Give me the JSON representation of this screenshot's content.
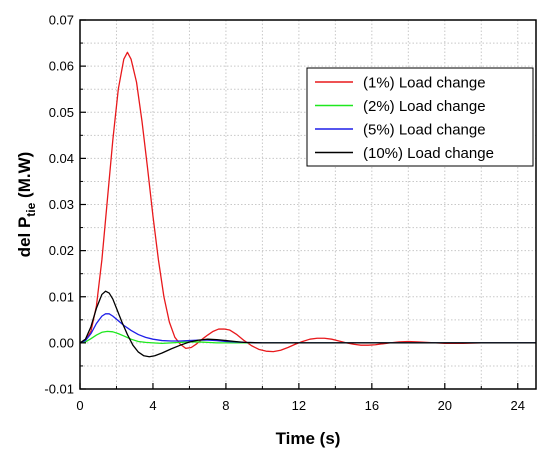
{
  "chart_data": {
    "type": "line",
    "title": "",
    "xlabel": "Time (s)",
    "ylabel": {
      "main": "del P",
      "sub": "tie",
      "suffix": " (M.W)"
    },
    "xlim": [
      0,
      25
    ],
    "ylim": [
      -0.01,
      0.07
    ],
    "xticks": [
      0,
      4,
      8,
      12,
      16,
      20,
      24
    ],
    "yticks": [
      -0.01,
      0.0,
      0.01,
      0.02,
      0.03,
      0.04,
      0.05,
      0.06,
      0.07
    ],
    "ytick_labels": [
      "-0.01",
      "0.00",
      "0.01",
      "0.02",
      "0.03",
      "0.04",
      "0.05",
      "0.06",
      "0.07"
    ],
    "grid": true,
    "legend_position": "top-right",
    "series": [
      {
        "name": "(1%) Load change",
        "color": "#e8191c",
        "x": [
          0,
          0.3,
          0.6,
          0.9,
          1.2,
          1.5,
          1.8,
          2.1,
          2.4,
          2.6,
          2.8,
          3.1,
          3.4,
          3.7,
          4.0,
          4.3,
          4.6,
          4.9,
          5.2,
          5.5,
          5.8,
          6.1,
          6.4,
          6.7,
          7.0,
          7.3,
          7.6,
          7.9,
          8.2,
          8.6,
          9.0,
          9.4,
          9.8,
          10.2,
          10.6,
          11.0,
          11.4,
          11.8,
          12.2,
          12.6,
          13.0,
          13.4,
          13.8,
          14.2,
          14.6,
          15.0,
          15.4,
          15.8,
          16.2,
          16.6,
          17.0,
          17.5,
          18.0,
          18.5,
          19.0,
          19.5,
          20.0,
          20.5,
          21.0,
          22.0,
          23.0,
          24.0,
          25.0
        ],
        "y": [
          0,
          0.0005,
          0.0025,
          0.008,
          0.018,
          0.031,
          0.044,
          0.055,
          0.0615,
          0.063,
          0.0615,
          0.0565,
          0.048,
          0.038,
          0.0275,
          0.018,
          0.01,
          0.0045,
          0.0012,
          -0.0003,
          -0.0012,
          -0.001,
          -0.0002,
          0.0008,
          0.0017,
          0.0025,
          0.003,
          0.003,
          0.0028,
          0.0018,
          0.0005,
          -0.0006,
          -0.0014,
          -0.0018,
          -0.0019,
          -0.0016,
          -0.001,
          -0.0003,
          0.0003,
          0.0008,
          0.001,
          0.001,
          0.0008,
          0.0004,
          0.0,
          -0.0003,
          -0.0005,
          -0.0005,
          -0.0004,
          -0.0002,
          0.0,
          0.0002,
          0.0003,
          0.0002,
          0.0001,
          0.0,
          -0.0001,
          -0.0001,
          -0.0001,
          0.0,
          0.0,
          0.0,
          0.0
        ]
      },
      {
        "name": "(2%) Load change",
        "color": "#1ee81e",
        "x": [
          0,
          0.3,
          0.6,
          0.9,
          1.2,
          1.5,
          1.8,
          2.1,
          2.4,
          2.8,
          3.2,
          3.6,
          4.0,
          4.5,
          5.0,
          5.5,
          6.0,
          6.5,
          7.0,
          7.5,
          8.0,
          9.0,
          10.0,
          12.0,
          16.0,
          20.0,
          25.0
        ],
        "y": [
          0,
          0.0002,
          0.0009,
          0.0017,
          0.0023,
          0.0025,
          0.0024,
          0.002,
          0.0015,
          0.0008,
          0.0003,
          0.0001,
          0.0,
          -0.0001,
          0.0,
          0.0001,
          0.0002,
          0.0002,
          0.0001,
          0.0,
          0.0,
          0.0,
          0.0,
          0.0,
          0.0,
          0.0,
          0.0
        ]
      },
      {
        "name": "(5%) Load change",
        "color": "#1f1fe8",
        "x": [
          0,
          0.3,
          0.6,
          0.9,
          1.2,
          1.4,
          1.6,
          1.8,
          2.1,
          2.4,
          2.8,
          3.2,
          3.6,
          4.0,
          4.5,
          5.0,
          5.5,
          6.0,
          6.5,
          7.0,
          7.5,
          8.0,
          9.0,
          10.0,
          12.0,
          16.0,
          20.0,
          25.0
        ],
        "y": [
          0,
          0.0005,
          0.002,
          0.0042,
          0.0058,
          0.0063,
          0.0063,
          0.0058,
          0.0048,
          0.0038,
          0.0027,
          0.0018,
          0.0012,
          0.0008,
          0.0005,
          0.0004,
          0.0004,
          0.0005,
          0.0006,
          0.0006,
          0.0005,
          0.0003,
          0.0001,
          0.0,
          0.0,
          0.0,
          0.0,
          0.0
        ]
      },
      {
        "name": "(10%) Load change",
        "color": "#000000",
        "x": [
          0,
          0.3,
          0.6,
          0.9,
          1.2,
          1.4,
          1.6,
          1.8,
          2.0,
          2.3,
          2.6,
          2.9,
          3.2,
          3.5,
          3.8,
          4.1,
          4.5,
          5.0,
          5.5,
          6.0,
          6.5,
          7.0,
          7.5,
          8.0,
          8.5,
          9.0,
          10.0,
          12.0,
          16.0,
          20.0,
          25.0
        ],
        "y": [
          0,
          0.0008,
          0.0035,
          0.0075,
          0.0105,
          0.0112,
          0.0108,
          0.0095,
          0.0075,
          0.0045,
          0.0018,
          -0.0005,
          -0.002,
          -0.0028,
          -0.003,
          -0.0028,
          -0.0022,
          -0.0013,
          -0.0005,
          0.0002,
          0.0006,
          0.0008,
          0.0007,
          0.0005,
          0.0003,
          0.0001,
          0.0,
          0.0,
          0.0,
          0.0,
          0.0
        ]
      }
    ]
  }
}
